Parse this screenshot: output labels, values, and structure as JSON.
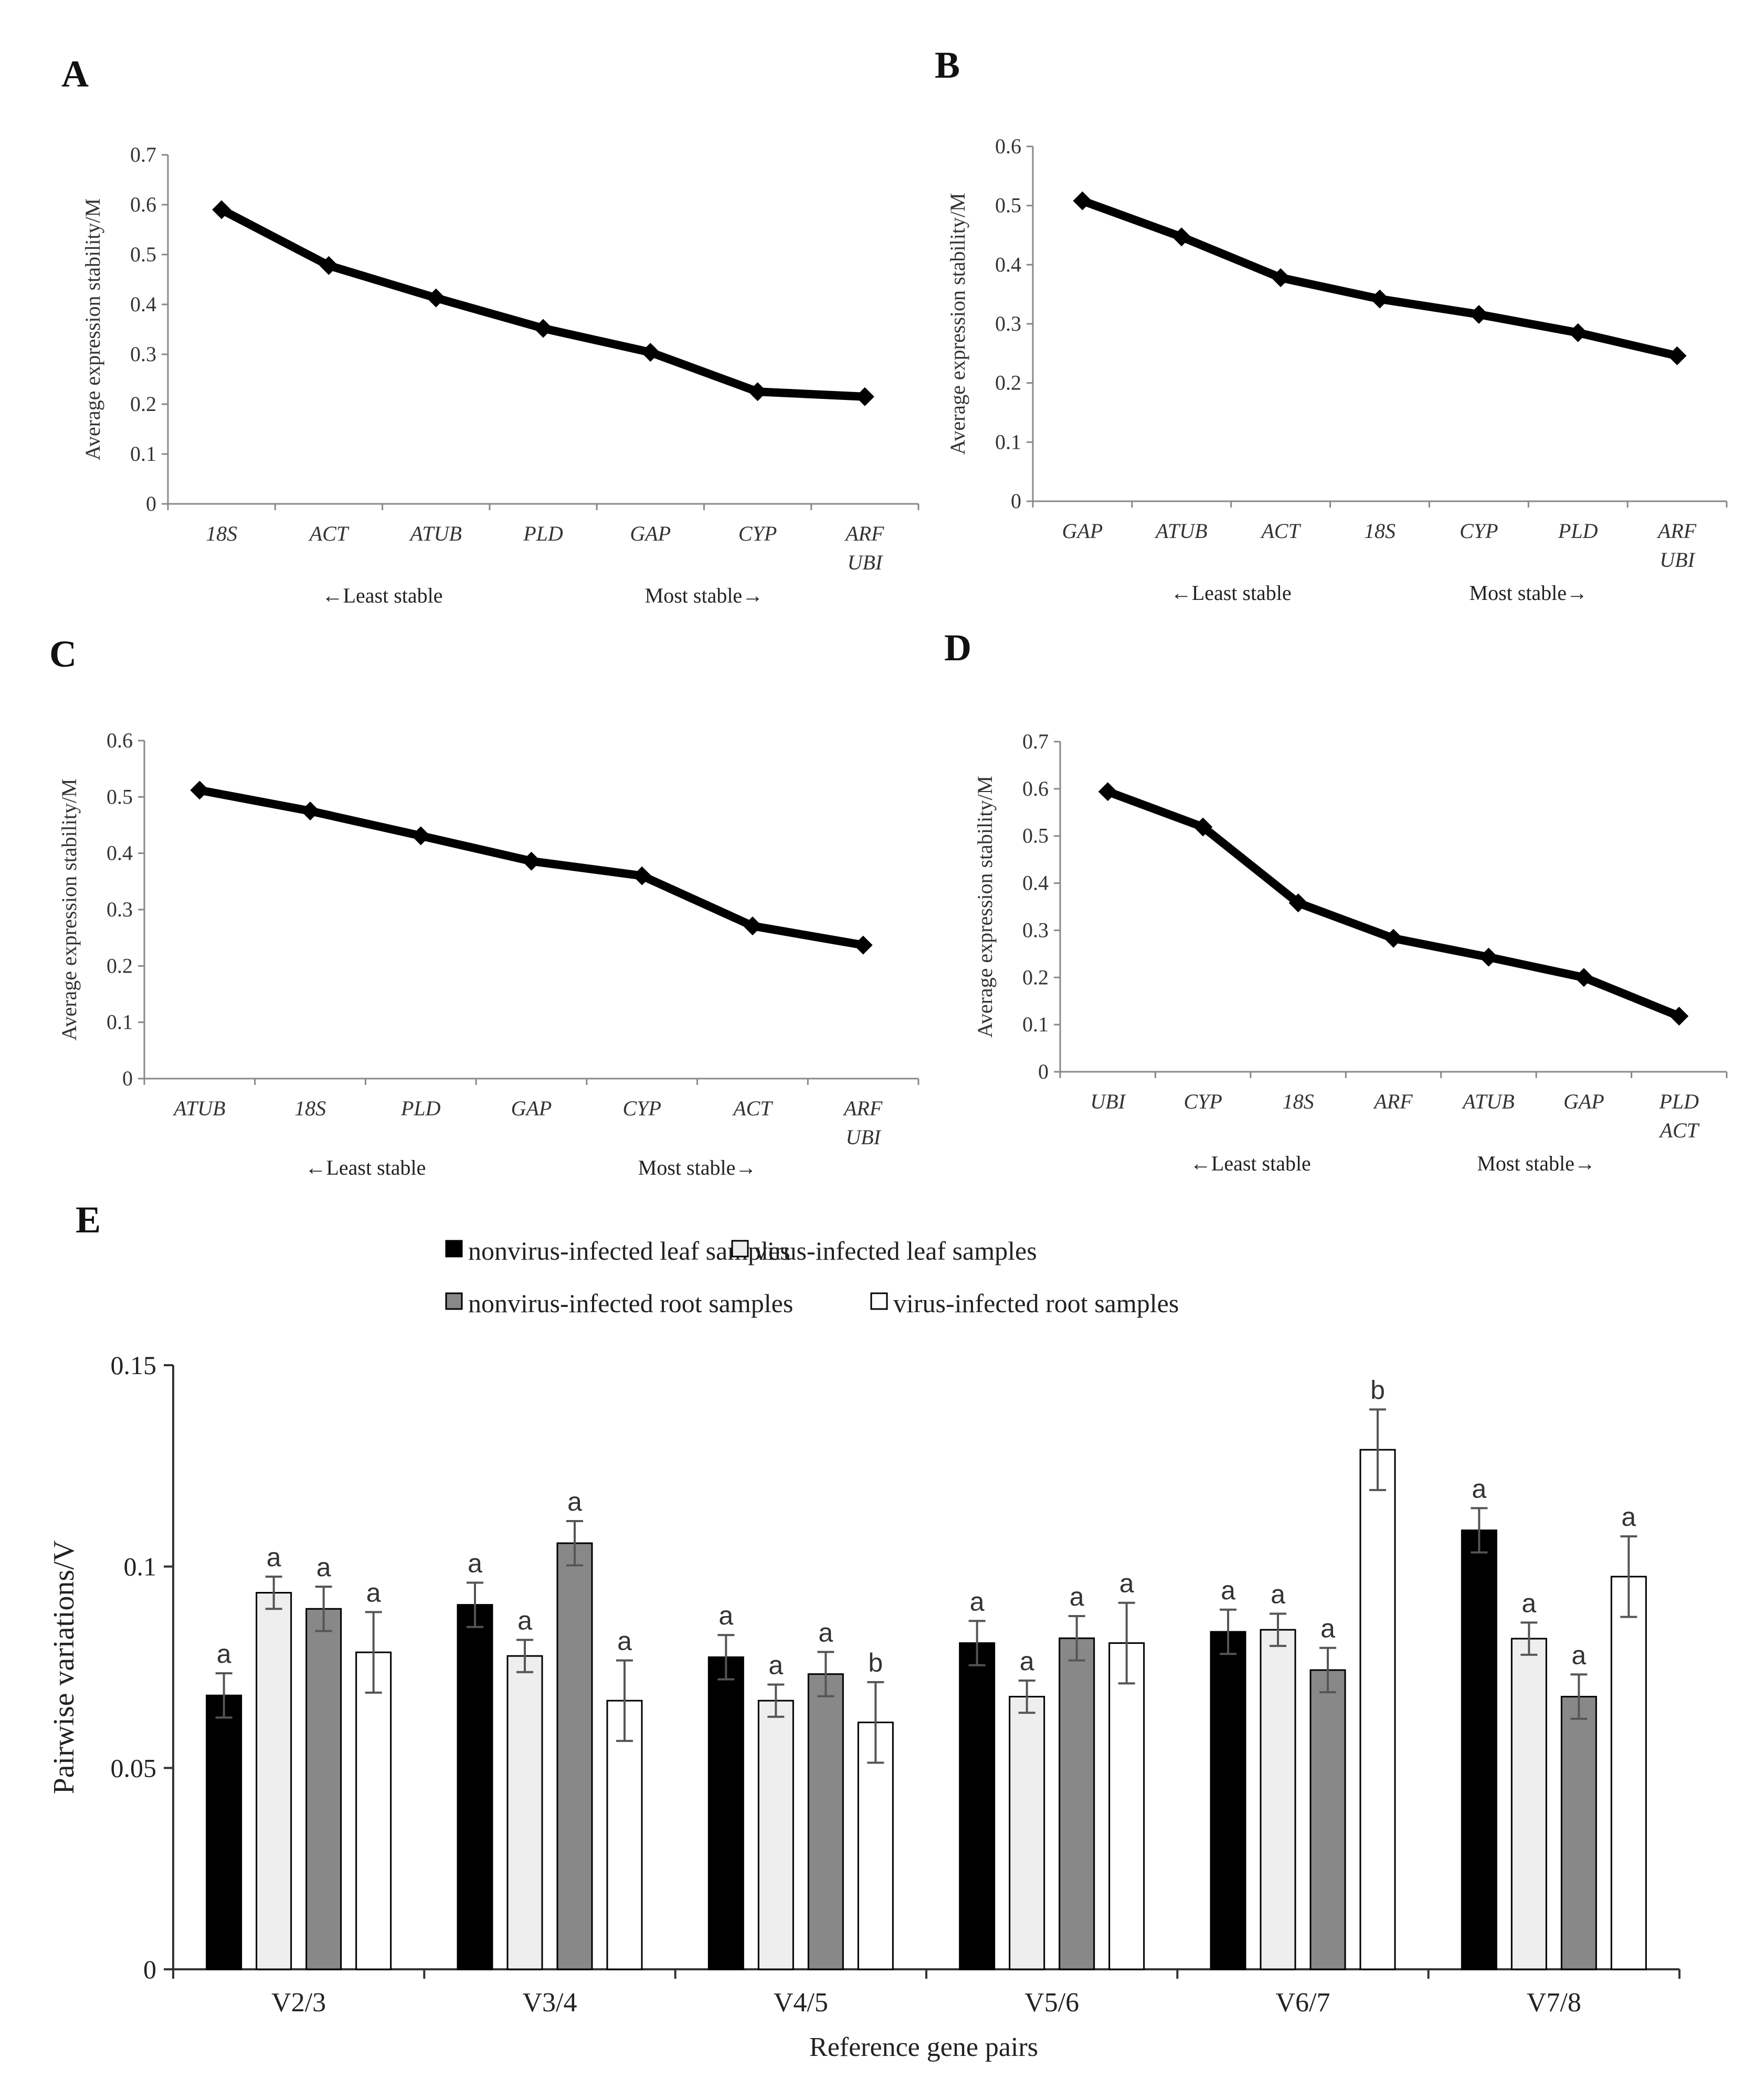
{
  "chart_data": [
    {
      "panel": "A",
      "type": "line",
      "ylabel": "Average expression stability/M",
      "ylim": [
        0,
        0.7
      ],
      "yticks": [
        "0",
        "0.1",
        "0.2",
        "0.3",
        "0.4",
        "0.5",
        "0.6",
        "0.7"
      ],
      "categories": [
        [
          "18S"
        ],
        [
          "ACT"
        ],
        [
          "ATUB"
        ],
        [
          "PLD"
        ],
        [
          "GAP"
        ],
        [
          "CYP"
        ],
        [
          "ARF",
          "UBI"
        ]
      ],
      "values": [
        0.59,
        0.478,
        0.413,
        0.352,
        0.304,
        0.225,
        0.215
      ],
      "least_label": "←Least stable",
      "most_label": "Most stable→"
    },
    {
      "panel": "B",
      "type": "line",
      "ylabel": "Average expression stability/M",
      "ylim": [
        0,
        0.6
      ],
      "yticks": [
        "0",
        "0.1",
        "0.2",
        "0.3",
        "0.4",
        "0.5",
        "0.6"
      ],
      "categories": [
        [
          "GAP"
        ],
        [
          "ATUB"
        ],
        [
          "ACT"
        ],
        [
          "18S"
        ],
        [
          "CYP"
        ],
        [
          "PLD"
        ],
        [
          "ARF",
          "UBI"
        ]
      ],
      "values": [
        0.508,
        0.447,
        0.378,
        0.342,
        0.316,
        0.285,
        0.246
      ],
      "least_label": "←Least stable",
      "most_label": "Most stable→"
    },
    {
      "panel": "C",
      "type": "line",
      "ylabel": "Average expression stability/M",
      "ylim": [
        0,
        0.6
      ],
      "yticks": [
        "0",
        "0.1",
        "0.2",
        "0.3",
        "0.4",
        "0.5",
        "0.6"
      ],
      "categories": [
        [
          "ATUB"
        ],
        [
          "18S"
        ],
        [
          "PLD"
        ],
        [
          "GAP"
        ],
        [
          "CYP"
        ],
        [
          "ACT"
        ],
        [
          "ARF",
          "UBI"
        ]
      ],
      "values": [
        0.512,
        0.475,
        0.431,
        0.386,
        0.36,
        0.271,
        0.237
      ],
      "least_label": "←Least stable",
      "most_label": "Most stable→"
    },
    {
      "panel": "D",
      "type": "line",
      "ylabel": "Average expression stability/M",
      "ylim": [
        0,
        0.7
      ],
      "yticks": [
        "0",
        "0.1",
        "0.2",
        "0.3",
        "0.4",
        "0.5",
        "0.6",
        "0.7"
      ],
      "categories": [
        [
          "UBI"
        ],
        [
          "CYP"
        ],
        [
          "18S"
        ],
        [
          "ARF"
        ],
        [
          "ATUB"
        ],
        [
          "GAP"
        ],
        [
          "PLD",
          "ACT"
        ]
      ],
      "values": [
        0.594,
        0.519,
        0.358,
        0.283,
        0.243,
        0.2,
        0.118
      ],
      "least_label": "←Least stable",
      "most_label": "Most stable→"
    },
    {
      "panel": "E",
      "type": "bar",
      "xlabel": "Reference  gene  pairs",
      "ylabel": "Pairwise variations/V",
      "ylim": [
        0,
        0.15
      ],
      "yticks": [
        "0",
        "0.05",
        "0.1",
        "0.15"
      ],
      "categories": [
        "V2/3",
        "V3/4",
        "V4/5",
        "V5/6",
        "V6/7",
        "V7/8"
      ],
      "legend_rows": [
        [
          0,
          1
        ],
        [
          2,
          3
        ]
      ],
      "series": [
        {
          "name": "nonvirus-infected leaf samples",
          "color": "#000000",
          "values": [
            0.068,
            0.0905,
            0.0775,
            0.081,
            0.0838,
            0.109
          ],
          "errors": [
            0.0055,
            0.0055,
            0.0055,
            0.0055,
            0.0055,
            0.0055
          ],
          "letters": [
            "a",
            "a",
            "a",
            "a",
            "a",
            "a"
          ]
        },
        {
          "name": "virus-infected leaf samples",
          "color": "#eeeeee",
          "values": [
            0.0935,
            0.0778,
            0.0667,
            0.0677,
            0.0843,
            0.0821
          ],
          "errors": [
            0.004,
            0.004,
            0.004,
            0.004,
            0.004,
            0.004
          ],
          "letters": [
            "a",
            "a",
            "a",
            "a",
            "a",
            "a"
          ]
        },
        {
          "name": "nonvirus-infected root samples",
          "color": "#888888",
          "values": [
            0.0895,
            0.1058,
            0.0733,
            0.0822,
            0.0743,
            0.0677
          ],
          "errors": [
            0.0055,
            0.0055,
            0.0055,
            0.0055,
            0.0055,
            0.0055
          ],
          "letters": [
            "a",
            "a",
            "a",
            "a",
            "a",
            "a"
          ]
        },
        {
          "name": "virus-infected root samples",
          "color": "#ffffff",
          "values": [
            0.0787,
            0.0667,
            0.0613,
            0.081,
            0.129,
            0.0975
          ],
          "errors": [
            0.01,
            0.01,
            0.01,
            0.01,
            0.01,
            0.01
          ],
          "letters": [
            "a",
            "a",
            "b",
            "a",
            "b",
            "a"
          ]
        }
      ]
    }
  ]
}
